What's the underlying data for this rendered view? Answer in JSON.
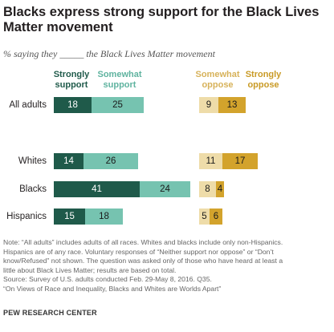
{
  "title": "Blacks express strong support for the Black Lives Matter movement",
  "subtitle": "% saying they _____ the Black Lives Matter movement",
  "colors": {
    "strongly_support": "#1f5a4a",
    "somewhat_support": "#76c3b0",
    "somewhat_oppose": "#eedca9",
    "strongly_oppose": "#d3a32c",
    "header_support_strong": "#1f5a4a",
    "header_support_somewhat": "#5fb39f",
    "header_oppose_somewhat": "#d7b25a",
    "header_oppose_strong": "#c99a25"
  },
  "chart_data": {
    "type": "bar",
    "orientation": "horizontal-diverging",
    "categories": [
      "All adults",
      "Whites",
      "Blacks",
      "Hispanics"
    ],
    "series": [
      {
        "name": "Strongly support",
        "values": [
          18,
          14,
          41,
          15
        ]
      },
      {
        "name": "Somewhat support",
        "values": [
          25,
          26,
          24,
          18
        ]
      },
      {
        "name": "Somewhat oppose",
        "values": [
          9,
          11,
          8,
          5
        ]
      },
      {
        "name": "Strongly oppose",
        "values": [
          13,
          17,
          4,
          6
        ]
      }
    ],
    "headers": {
      "strongly_support": [
        "Strongly",
        "support"
      ],
      "somewhat_support": [
        "Somewhat",
        "support"
      ],
      "somewhat_oppose": [
        "Somewhat",
        "oppose"
      ],
      "strongly_oppose": [
        "Strongly",
        "oppose"
      ]
    }
  },
  "notes": [
    "Note: “All adults” includes adults of all races. Whites and blacks include only non-Hispanics.",
    "Hispanics are of any race. Voluntary responses of “Neither support nor oppose” or “Don’t",
    "know/Refused” not shown. The question was asked only of those who have heard at least a",
    "little about Black Lives Matter; results are based on total.",
    "Source: Survey of U.S. adults conducted Feb. 29-May 8, 2016. Q35.",
    "“On Views of Race and Inequality, Blacks and Whites are Worlds Apart”"
  ],
  "footer": "PEW RESEARCH CENTER"
}
